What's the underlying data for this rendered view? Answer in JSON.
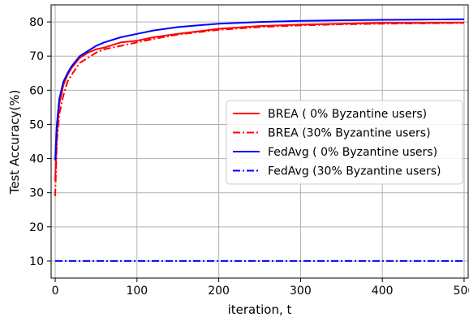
{
  "chart_data": {
    "type": "line",
    "title": "",
    "xlabel": "iteration, t",
    "ylabel": "Test Accuracy(%)",
    "xlim": [
      -5,
      505
    ],
    "ylim": [
      5,
      85
    ],
    "xticks": [
      0,
      100,
      200,
      300,
      400,
      500
    ],
    "yticks": [
      10,
      20,
      30,
      40,
      50,
      60,
      70,
      80
    ],
    "grid": true,
    "legend_position": "center-right",
    "series": [
      {
        "name": "BREA ( 0% Byzantine users)",
        "color": "#ff0000",
        "style": "solid",
        "x": [
          0,
          2,
          5,
          10,
          15,
          20,
          30,
          40,
          50,
          60,
          80,
          100,
          120,
          150,
          200,
          250,
          300,
          350,
          400,
          450,
          500
        ],
        "y": [
          33.5,
          47,
          56,
          61.5,
          64.5,
          66.5,
          69.5,
          71,
          72,
          72.5,
          74,
          74.5,
          75.5,
          76.5,
          78,
          78.8,
          79.2,
          79.5,
          79.7,
          79.7,
          79.8
        ]
      },
      {
        "name": "BREA (30% Byzantine users)",
        "color": "#ff0000",
        "style": "dashdot",
        "x": [
          0,
          2,
          5,
          10,
          15,
          20,
          30,
          40,
          50,
          60,
          80,
          100,
          120,
          150,
          200,
          250,
          300,
          350,
          400,
          450,
          500
        ],
        "y": [
          29,
          45,
          53,
          58.5,
          62.5,
          64.5,
          68,
          69.5,
          71,
          72,
          73,
          74,
          75,
          76.3,
          77.7,
          78.5,
          79,
          79.3,
          79.5,
          79.6,
          79.7
        ]
      },
      {
        "name": "FedAvg ( 0% Byzantine users)",
        "color": "#0000ff",
        "style": "solid",
        "x": [
          0,
          2,
          5,
          10,
          15,
          20,
          30,
          40,
          50,
          60,
          80,
          100,
          120,
          150,
          200,
          250,
          300,
          350,
          400,
          450,
          500
        ],
        "y": [
          39.5,
          50,
          57.5,
          62.5,
          65,
          67,
          70,
          71.5,
          73,
          74,
          75.5,
          76.5,
          77.5,
          78.5,
          79.5,
          80,
          80.3,
          80.5,
          80.6,
          80.7,
          80.8
        ]
      },
      {
        "name": "FedAvg (30% Byzantine users)",
        "color": "#0000ff",
        "style": "dashdot",
        "x": [
          0,
          500
        ],
        "y": [
          10,
          10
        ]
      }
    ]
  }
}
